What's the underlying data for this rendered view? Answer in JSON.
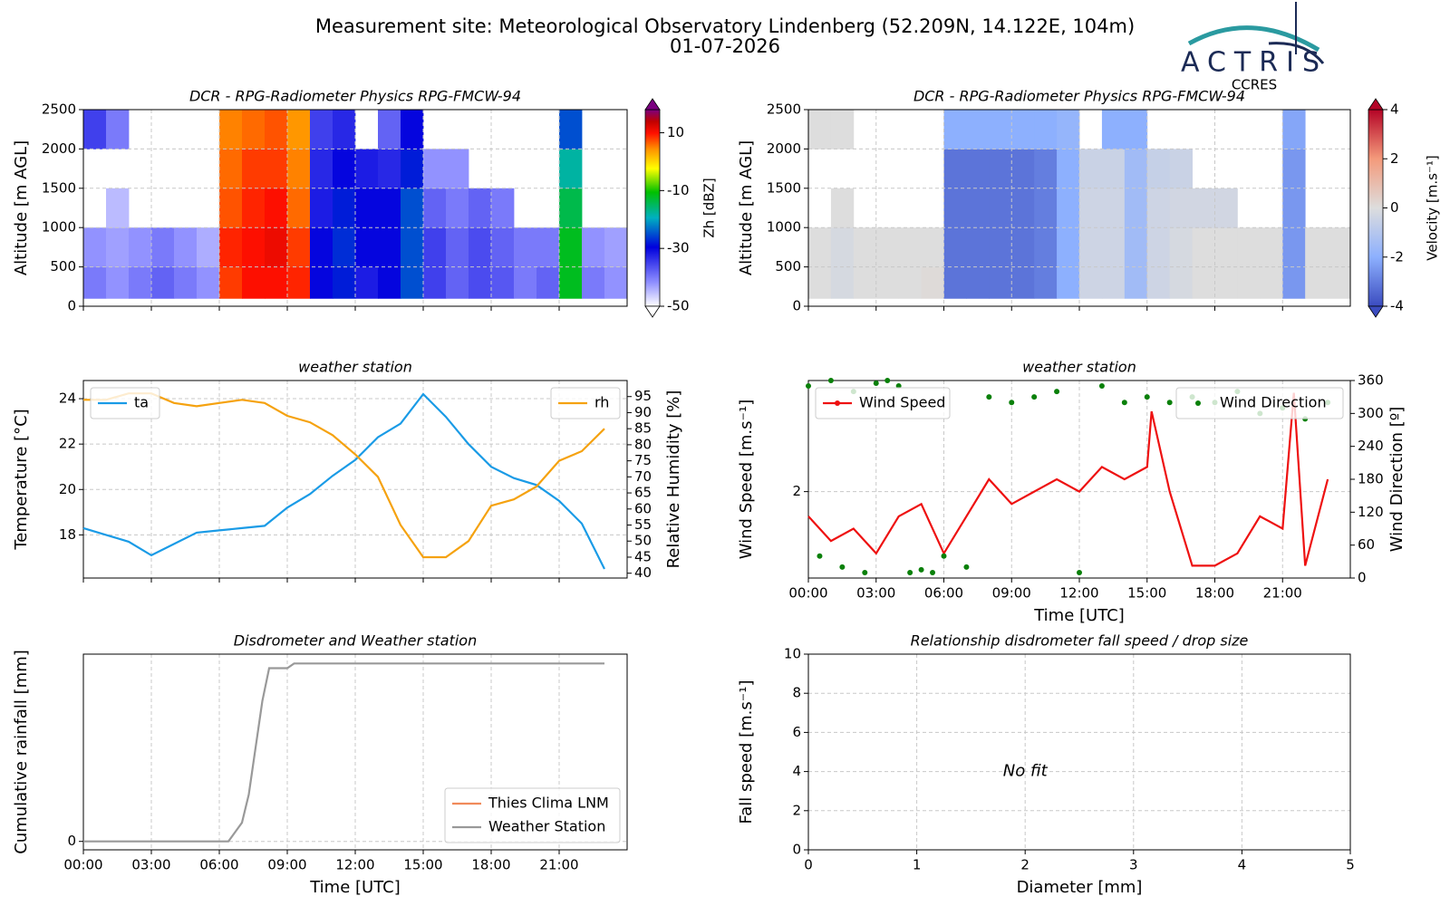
{
  "header": {
    "title": "Measurement site: Meteorological Observatory Lindenberg (52.209N, 14.122E, 104m)",
    "date": "01-07-2026",
    "logo": "ACTRIS",
    "logo_sub": "CCRES"
  },
  "chart_data": [
    {
      "type": "heatmap",
      "title": "DCR - RPG-Radiometer Physics RPG-FMCW-94",
      "ylabel": "Altitude [m AGL]",
      "xlim": [
        0,
        24
      ],
      "xticks": [
        0,
        3,
        6,
        9,
        12,
        15,
        18,
        21
      ],
      "show_xtick_labels": false,
      "ylim": [
        0,
        2500
      ],
      "yticks": [
        0,
        500,
        1000,
        1500,
        2000,
        2500
      ],
      "grid": true,
      "xbins": [
        0,
        1,
        2,
        3,
        4,
        5,
        6,
        7,
        8,
        9,
        10,
        11,
        12,
        13,
        14,
        15,
        16,
        17,
        18,
        19,
        20,
        21,
        22,
        23,
        24
      ],
      "ybins": [
        100,
        500,
        1000,
        1500,
        2000,
        2500
      ],
      "z": [
        [
          -40,
          -42,
          -40,
          -38,
          -40,
          -42,
          8,
          10,
          10,
          9,
          -30,
          -28,
          -32,
          -30,
          -25,
          -35,
          -38,
          -36,
          -37,
          -40,
          -38,
          -12,
          -40,
          -42
        ],
        [
          -42,
          -43,
          -42,
          -40,
          -42,
          -44,
          9,
          10,
          11,
          8,
          -30,
          -27,
          -30,
          -30,
          -25,
          -35,
          -38,
          -36,
          -38,
          -40,
          -40,
          -12,
          -42,
          -43
        ],
        [
          null,
          -45,
          null,
          null,
          null,
          null,
          7,
          9,
          10,
          6,
          -32,
          -28,
          -30,
          -30,
          -25,
          -38,
          -40,
          -38,
          -40,
          null,
          null,
          -14,
          null,
          null
        ],
        [
          null,
          null,
          null,
          null,
          null,
          null,
          6,
          8,
          8,
          5,
          -33,
          -30,
          -32,
          -33,
          -28,
          -42,
          -42,
          null,
          null,
          null,
          null,
          -18,
          null,
          null
        ],
        [
          -35,
          -40,
          null,
          null,
          null,
          null,
          5,
          6,
          7,
          4,
          -35,
          -33,
          null,
          -38,
          -30,
          null,
          null,
          null,
          null,
          null,
          null,
          -25,
          null,
          null
        ]
      ],
      "colormap": "reflectivity",
      "clim": [
        -50,
        18
      ],
      "cticks": [
        -50,
        -30,
        -10,
        10
      ],
      "clabel": "Zh [dBZ]"
    },
    {
      "type": "heatmap",
      "title": "DCR - RPG-Radiometer Physics RPG-FMCW-94",
      "ylabel": "Altitude [m AGL]",
      "xlim": [
        0,
        24
      ],
      "xticks": [
        0,
        3,
        6,
        9,
        12,
        15,
        18,
        21
      ],
      "show_xtick_labels": false,
      "ylim": [
        0,
        2500
      ],
      "yticks": [
        0,
        500,
        1000,
        1500,
        2000,
        2500
      ],
      "grid": true,
      "xbins": [
        0,
        1,
        2,
        3,
        4,
        5,
        6,
        7,
        8,
        9,
        10,
        11,
        12,
        13,
        14,
        15,
        16,
        17,
        18,
        19,
        20,
        21,
        22,
        23,
        24
      ],
      "ybins": [
        100,
        500,
        1000,
        1500,
        2000,
        2500
      ],
      "z": [
        [
          0,
          -0.2,
          0,
          0,
          0,
          0.1,
          -3.2,
          -3.2,
          -3.2,
          -3.2,
          -3,
          -2,
          -0.4,
          -0.4,
          -1.5,
          -0.4,
          -0.2,
          0,
          0,
          0,
          0,
          -2.5,
          0,
          0
        ],
        [
          0,
          -0.2,
          0,
          0,
          0,
          0,
          -3.2,
          -3.2,
          -3.2,
          -3.2,
          -3,
          -2,
          -0.4,
          -0.4,
          -1.5,
          -0.4,
          -0.2,
          0,
          0,
          0,
          0,
          -2.5,
          0,
          0
        ],
        [
          null,
          0,
          null,
          null,
          null,
          null,
          -3.2,
          -3.2,
          -3.2,
          -3.2,
          -3,
          -2,
          -0.4,
          -0.4,
          -1.5,
          -0.4,
          -0.3,
          -0.3,
          -0.3,
          null,
          null,
          -2.5,
          null,
          null
        ],
        [
          null,
          null,
          null,
          null,
          null,
          null,
          -3.2,
          -3.2,
          -3.2,
          -3.2,
          -3,
          -2,
          -0.5,
          -0.5,
          -1.5,
          -0.6,
          -0.5,
          null,
          null,
          null,
          null,
          -2.5,
          null,
          null
        ],
        [
          0,
          0,
          null,
          null,
          null,
          null,
          -2,
          -2,
          -2,
          -2,
          -2,
          -1.8,
          null,
          -2,
          -2,
          null,
          null,
          null,
          null,
          null,
          null,
          -2.2,
          null,
          null
        ]
      ],
      "colormap": "coolwarm",
      "clim": [
        -4,
        4
      ],
      "cticks": [
        -4,
        -2,
        0,
        2,
        4
      ],
      "clabel": "Velocity [m.s⁻¹]"
    },
    {
      "type": "line",
      "title": "weather station",
      "ylabel": "Temperature [°C]",
      "y2label": "Relative Humidity [%]",
      "xlim": [
        0,
        24
      ],
      "xticks": [
        0,
        3,
        6,
        9,
        12,
        15,
        18,
        21
      ],
      "show_xtick_labels": false,
      "grid": true,
      "ylim": [
        16.1,
        24.8
      ],
      "yticks": [
        18,
        20,
        22,
        24
      ],
      "y2lim": [
        38.5,
        100
      ],
      "y2ticks": [
        40,
        45,
        50,
        55,
        60,
        65,
        70,
        75,
        80,
        85,
        90,
        95
      ],
      "x": [
        0,
        1,
        2,
        3,
        4,
        5,
        6,
        7,
        8,
        9,
        10,
        11,
        12,
        13,
        14,
        15,
        16,
        17,
        18,
        19,
        20,
        21,
        22,
        23
      ],
      "series": [
        {
          "name": "ta",
          "color": "#1a9be6",
          "legend": "upper left",
          "values": [
            18.3,
            18.0,
            17.7,
            17.1,
            17.6,
            18.1,
            18.2,
            18.3,
            18.4,
            19.2,
            19.8,
            20.6,
            21.3,
            22.3,
            22.9,
            24.2,
            23.2,
            22.0,
            21.0,
            20.5,
            20.2,
            19.5,
            18.5,
            16.5
          ]
        },
        {
          "name": "rh",
          "color": "#f5a20f",
          "axis": "y2",
          "legend": "upper right",
          "values": [
            94,
            94,
            96,
            96,
            93,
            92,
            93,
            94,
            93,
            89,
            87,
            83,
            77,
            70,
            55,
            45,
            45,
            50,
            61,
            63,
            67,
            75,
            78,
            85
          ]
        }
      ]
    },
    {
      "type": "line",
      "title": "weather station",
      "ylabel": "Wind Speed [m.s⁻¹]",
      "y2label": "Wind Direction [º]",
      "xlabel": "Time [UTC]",
      "xlim": [
        0,
        24
      ],
      "grid": true,
      "xticks": [
        {
          "value": 0,
          "label": "00:00"
        },
        {
          "value": 3,
          "label": "03:00"
        },
        {
          "value": 6,
          "label": "06:00"
        },
        {
          "value": 9,
          "label": "09:00"
        },
        {
          "value": 12,
          "label": "12:00"
        },
        {
          "value": 15,
          "label": "15:00"
        },
        {
          "value": 18,
          "label": "18:00"
        },
        {
          "value": 21,
          "label": "21:00"
        }
      ],
      "ylim": [
        1.3,
        2.9
      ],
      "yticks": [
        2
      ],
      "y2lim": [
        0,
        360
      ],
      "y2ticks": [
        0,
        60,
        120,
        180,
        240,
        300,
        360
      ],
      "series": [
        {
          "name": "Wind Speed",
          "color": "#ee1111",
          "legend": "upper left",
          "marker": true,
          "x": [
            0,
            1,
            2,
            3,
            4,
            5,
            6,
            7,
            8,
            9,
            10,
            11,
            12,
            13,
            14,
            15,
            15.2,
            16,
            17,
            18,
            19,
            20,
            21,
            21.5,
            22,
            23
          ],
          "values": [
            1.8,
            1.6,
            1.7,
            1.5,
            1.8,
            1.9,
            1.5,
            1.8,
            2.1,
            1.9,
            2.0,
            2.1,
            2.0,
            2.2,
            2.1,
            2.2,
            2.65,
            2.0,
            1.4,
            1.4,
            1.5,
            1.8,
            1.7,
            2.8,
            1.4,
            2.1
          ]
        },
        {
          "name": "Wind Direction",
          "color": "#0a800a",
          "axis": "y2",
          "style": "points",
          "legend": "upper right",
          "x": [
            0,
            0.5,
            1,
            1.5,
            2,
            2.5,
            3,
            3.5,
            4,
            4.5,
            5,
            5.5,
            6,
            7,
            8,
            9,
            10,
            11,
            12,
            13,
            14,
            15,
            16,
            17,
            18,
            19,
            20,
            21,
            22,
            23
          ],
          "values": [
            350,
            40,
            360,
            20,
            340,
            10,
            355,
            360,
            350,
            10,
            15,
            10,
            40,
            20,
            330,
            320,
            330,
            340,
            10,
            350,
            320,
            330,
            320,
            330,
            320,
            340,
            300,
            310,
            290,
            320
          ]
        }
      ]
    },
    {
      "type": "line",
      "title": "Disdrometer and Weather station",
      "ylabel": "Cumulative rainfall [mm]",
      "xlabel": "Time [UTC]",
      "xlim": [
        0,
        24
      ],
      "grid": true,
      "xticks": [
        {
          "value": 0,
          "label": "00:00"
        },
        {
          "value": 3,
          "label": "03:00"
        },
        {
          "value": 6,
          "label": "06:00"
        },
        {
          "value": 9,
          "label": "09:00"
        },
        {
          "value": 12,
          "label": "12:00"
        },
        {
          "value": 15,
          "label": "15:00"
        },
        {
          "value": 18,
          "label": "18:00"
        },
        {
          "value": 21,
          "label": "21:00"
        }
      ],
      "ylim": [
        -0.9,
        20
      ],
      "yticks": [
        0
      ],
      "series": [
        {
          "name": "Thies Clima LNM",
          "color": "#f08a5a",
          "legend": "lower right",
          "x": [],
          "values": []
        },
        {
          "name": "Weather Station",
          "color": "#999999",
          "legend": "lower right",
          "x": [
            0,
            6.4,
            6.7,
            7,
            7.3,
            7.6,
            7.9,
            8.2,
            9,
            9.3,
            23
          ],
          "values": [
            0,
            0,
            1,
            2,
            5,
            10,
            15,
            18.5,
            18.5,
            19,
            19
          ]
        }
      ]
    },
    {
      "type": "scatter",
      "title": "Relationship disdrometer fall speed / drop size",
      "ylabel": "Fall speed [m.s⁻¹]",
      "xlabel": "Diameter [mm]",
      "xlim": [
        0,
        5
      ],
      "xticks": [
        0,
        1,
        2,
        3,
        4,
        5
      ],
      "ylim": [
        0,
        10
      ],
      "yticks": [
        0,
        2,
        4,
        6,
        8,
        10
      ],
      "grid": true,
      "annotation": "No fit",
      "series": []
    }
  ]
}
